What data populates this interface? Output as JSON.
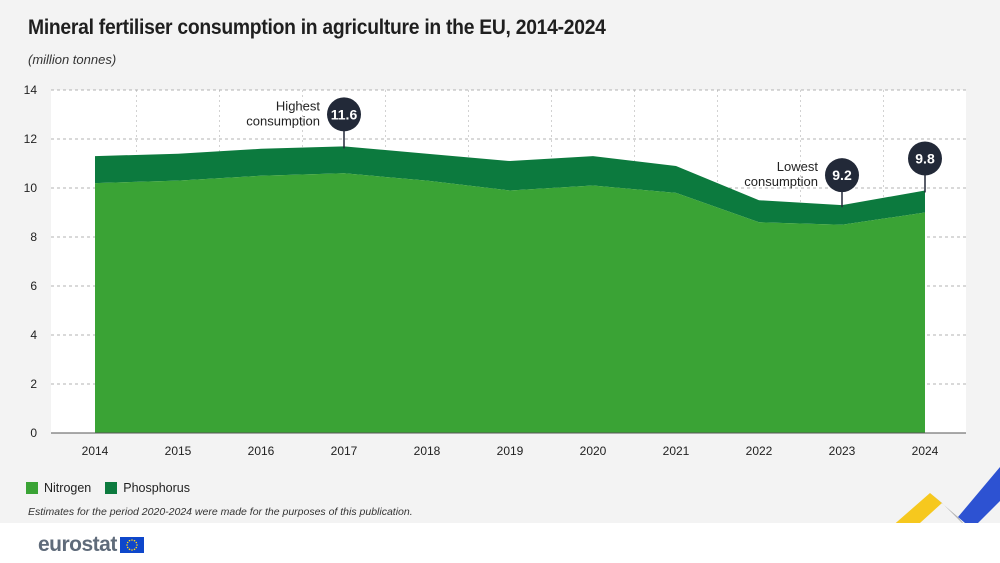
{
  "title": "Mineral fertiliser consumption in agriculture in the EU, 2014-2024",
  "subtitle": "(million tonnes)",
  "note": "Estimates for the period 2020-2024 were made for the purposes of this publication.",
  "brand": "eurostat",
  "colors": {
    "nitrogen": "#3aa335",
    "phosphorus": "#0c7a3e",
    "callout": "#222938",
    "grid": "#9a9a9a",
    "deco_yellow": "#f6c81e",
    "deco_blue": "#2d52d2",
    "deco_grey": "#b3b3b3"
  },
  "chart_data": {
    "type": "area",
    "stacked": true,
    "categories": [
      "2014",
      "2015",
      "2016",
      "2017",
      "2018",
      "2019",
      "2020",
      "2021",
      "2022",
      "2023",
      "2024"
    ],
    "series": [
      {
        "name": "Nitrogen",
        "values": [
          10.2,
          10.3,
          10.5,
          10.6,
          10.3,
          9.9,
          10.1,
          9.8,
          8.6,
          8.5,
          9.0
        ]
      },
      {
        "name": "Phosphorus",
        "values": [
          1.1,
          1.1,
          1.1,
          1.1,
          1.1,
          1.2,
          1.2,
          1.1,
          0.9,
          0.8,
          0.9
        ]
      }
    ],
    "ylim": [
      0,
      14
    ],
    "yticks": [
      0,
      2,
      4,
      6,
      8,
      10,
      12,
      14
    ],
    "grid": true,
    "legend": "bottom-left",
    "annotations": [
      {
        "category": "2017",
        "value": "11.6",
        "label_lines": [
          "Highest",
          "consumption"
        ],
        "label_side": "left"
      },
      {
        "category": "2023",
        "value": "9.2",
        "label_lines": [
          "Lowest",
          "consumption"
        ],
        "label_side": "left"
      },
      {
        "category": "2024",
        "value": "9.8",
        "label_lines": [],
        "label_side": "none"
      }
    ]
  }
}
